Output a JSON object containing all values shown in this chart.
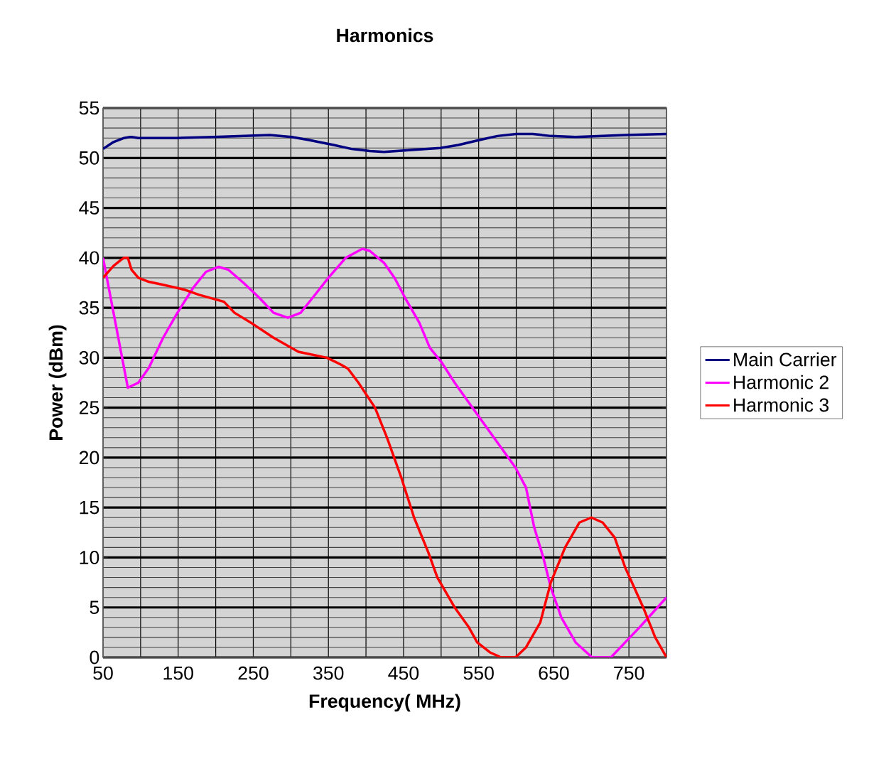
{
  "chart_data": {
    "type": "line",
    "title": "Harmonics",
    "xlabel": "Frequency( MHz)",
    "ylabel": "Power (dBm)",
    "xlim": [
      50,
      800
    ],
    "ylim": [
      0,
      55
    ],
    "xticks": [
      50,
      {
        "value": 100,
        "label": null
      },
      150,
      {
        "value": 200,
        "label": null
      },
      250,
      {
        "value": 300,
        "label": null
      },
      350,
      {
        "value": 400,
        "label": null
      },
      450,
      {
        "value": 500,
        "label": null
      },
      550,
      {
        "value": 600,
        "label": null
      },
      650,
      {
        "value": 700,
        "label": null
      },
      750,
      {
        "value": 800,
        "label": null
      }
    ],
    "yticks": [
      0,
      5,
      10,
      15,
      20,
      25,
      30,
      35,
      40,
      45,
      50,
      55
    ],
    "grid": true,
    "legend": "right",
    "marker": "none",
    "line_style": "solid",
    "series": [
      {
        "name": "Main Carrier",
        "color": "#000080",
        "x": [
          50,
          64,
          78,
          86,
          88,
          97,
          149,
          197,
          272,
          301,
          324,
          357,
          381,
          405,
          424,
          461,
          499,
          523,
          551,
          575,
          600,
          622,
          646,
          679,
          745,
          800
        ],
        "values": [
          50.9,
          51.6,
          52.0,
          52.1,
          52.1,
          52.0,
          52.0,
          52.1,
          52.3,
          52.1,
          51.8,
          51.3,
          50.9,
          50.7,
          50.6,
          50.8,
          51.0,
          51.3,
          51.8,
          52.2,
          52.4,
          52.4,
          52.2,
          52.1,
          52.3,
          52.4
        ]
      },
      {
        "name": "Harmonic 2",
        "color": "#ff00ff",
        "x": [
          50,
          83,
          97,
          111,
          130,
          149,
          170,
          187,
          204,
          217,
          237,
          258,
          277,
          296,
          313,
          329,
          350,
          373,
          395,
          405,
          424,
          438,
          452,
          471,
          485,
          501,
          518,
          537,
          556,
          575,
          599,
          613,
          624,
          636,
          646,
          660,
          679,
          701,
          726,
          745,
          764,
          788,
          800
        ],
        "values": [
          40,
          27,
          27.5,
          29,
          32,
          34.5,
          37,
          38.6,
          39.1,
          38.8,
          37.5,
          36,
          34.5,
          34,
          34.5,
          36,
          38,
          40,
          40.9,
          40.7,
          39.5,
          38,
          36,
          33.5,
          31,
          29.5,
          27.5,
          25.5,
          23.5,
          21.5,
          19,
          17,
          13,
          10,
          7,
          4,
          1.5,
          0,
          0,
          1.5,
          3,
          5,
          6
        ]
      },
      {
        "name": "Harmonic 3",
        "color": "#ff0000",
        "x": [
          50,
          64,
          74,
          78,
          83,
          88,
          97,
          111,
          130,
          159,
          178,
          211,
          225,
          249,
          277,
          310,
          348,
          367,
          376,
          390,
          412,
          428,
          447,
          464,
          483,
          495,
          518,
          537,
          548,
          565,
          580,
          599,
          613,
          632,
          646,
          665,
          684,
          700,
          715,
          731,
          745,
          769,
          785,
          800
        ],
        "values": [
          38,
          39.2,
          39.8,
          40,
          40,
          38.8,
          38,
          37.6,
          37.3,
          36.8,
          36.3,
          35.6,
          34.5,
          33.4,
          32,
          30.6,
          30,
          29.3,
          28.9,
          27.5,
          25,
          22,
          18,
          14,
          10.5,
          8,
          5,
          3,
          1.5,
          0.5,
          0,
          0,
          1,
          3.5,
          7.5,
          11,
          13.5,
          14,
          13.5,
          12,
          9,
          5,
          2,
          0
        ]
      }
    ]
  }
}
